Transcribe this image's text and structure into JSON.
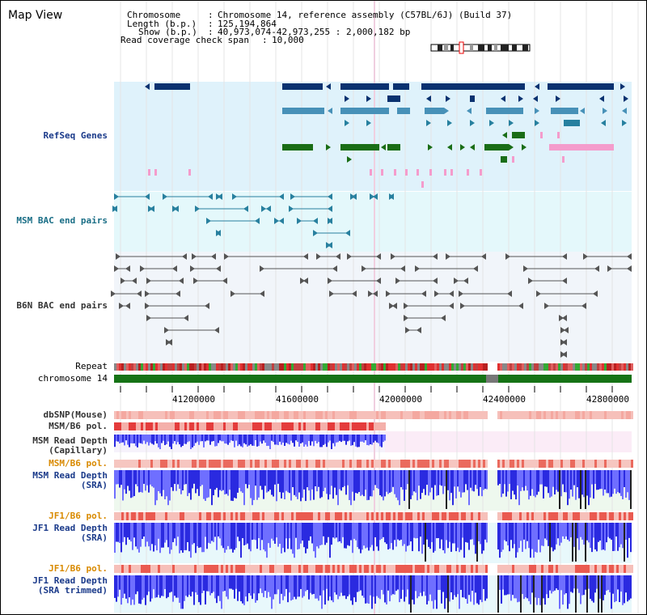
{
  "page": {
    "title": "Map View",
    "info": {
      "chromosome_label": "Chromosome",
      "chromosome_value": "Chromosome 14, reference assembly (C57BL/6J) (Build 37)",
      "length_label": "Length (b.p.)",
      "length_value": "125,194,864",
      "show_label": "Show (b.p.)",
      "show_value": "40,973,074-42,973,255 : 2,000,182 bp",
      "coverage_label": "Read coverage check span",
      "coverage_value": "10,000"
    }
  },
  "tracks": {
    "refseq": "RefSeq Genes",
    "msm_bac": "MSM BAC end pairs",
    "b6n_bac": "B6N BAC end pairs",
    "repeat": "Repeat",
    "chromosome": "chromosome 14",
    "dbsnp": "dbSNP(Mouse)",
    "msm_pol_1": "MSM/B6 pol.",
    "msm_depth_cap_1": "MSM Read Depth",
    "msm_depth_cap_2": "(Capillary)",
    "msm_pol_2": "MSM/B6 pol.",
    "msm_depth_sra_1": "MSM Read Depth",
    "msm_depth_sra_2": "(SRA)",
    "jf1_pol_1": "JF1/B6 pol.",
    "jf1_depth_sra_1": "JF1 Read Depth",
    "jf1_depth_sra_2": "(SRA)",
    "jf1_pol_2": "JF1/B6 pol.",
    "jf1_depth_trim_1": "JF1 Read Depth",
    "jf1_depth_trim_2": "(SRA trimmed)"
  },
  "axis": {
    "ticks": [
      "41200000",
      "41600000",
      "42000000",
      "42400000",
      "42800000"
    ]
  },
  "colors": {
    "refseq_bg": "#dff2fb",
    "msm_bac_bg": "#e4f8fb",
    "b6n_bac_bg": "#f1f5fa",
    "gene_navy": "#0a3270",
    "gene_lightblue": "#4791b8",
    "gene_teal": "#26809f",
    "gene_green": "#1a6d16",
    "gene_pink": "#f49ccc",
    "msm_bac": "#28809f",
    "b6n_bac": "#555555",
    "chromosome": "#167316",
    "depth_blue": "#2a2ae0",
    "depth_light": "#6f6fff",
    "depth_dark": "#222222",
    "snp_light": "#f6b7b0",
    "snp_red": "#e43c3c"
  }
}
